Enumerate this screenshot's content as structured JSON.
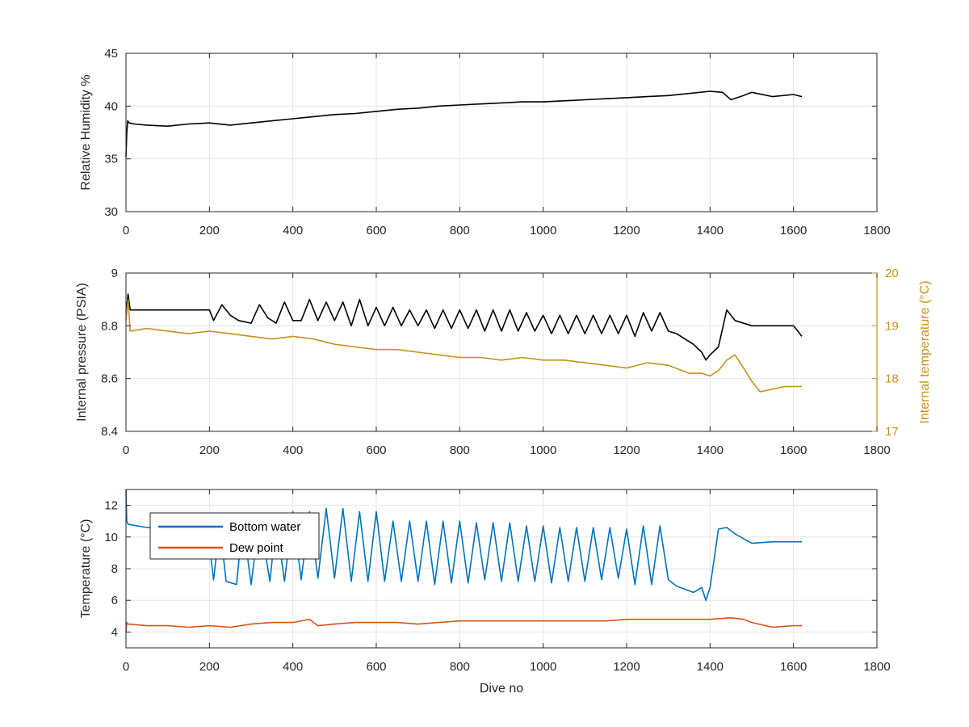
{
  "figure": {
    "background": "#ffffff",
    "axis_color": "#262626",
    "grid_color": "#e6e6e6"
  },
  "chart_data": [
    {
      "type": "line",
      "xlabel": "",
      "ylabel": "Relative Humidity %",
      "xlim": [
        0,
        1800
      ],
      "ylim": [
        30,
        45
      ],
      "xticks": [
        0,
        200,
        400,
        600,
        800,
        1000,
        1200,
        1400,
        1600,
        1800
      ],
      "yticks": [
        30,
        35,
        40,
        45
      ],
      "grid": true,
      "legend": "none",
      "series": [
        {
          "color": "#000000",
          "x": [
            0,
            2,
            4,
            8,
            20,
            50,
            100,
            150,
            200,
            250,
            300,
            350,
            400,
            450,
            500,
            550,
            600,
            650,
            700,
            750,
            800,
            850,
            900,
            950,
            1000,
            1050,
            1100,
            1150,
            1200,
            1250,
            1300,
            1350,
            1400,
            1430,
            1450,
            1480,
            1500,
            1550,
            1600,
            1620
          ],
          "values": [
            35.2,
            37.5,
            38.6,
            38.4,
            38.3,
            38.2,
            38.1,
            38.3,
            38.4,
            38.2,
            38.4,
            38.6,
            38.8,
            39.0,
            39.2,
            39.3,
            39.5,
            39.7,
            39.8,
            40.0,
            40.1,
            40.2,
            40.3,
            40.4,
            40.4,
            40.5,
            40.6,
            40.7,
            40.8,
            40.9,
            41.0,
            41.2,
            41.4,
            41.3,
            40.6,
            41.0,
            41.3,
            40.9,
            41.1,
            40.9
          ]
        }
      ]
    },
    {
      "type": "line",
      "xlabel": "",
      "ylabel": "Internal pressure (PSIA)",
      "y2label": "Internal temperature (°C)",
      "xlim": [
        0,
        1800
      ],
      "ylim": [
        8.4,
        9.0
      ],
      "y2lim": [
        17,
        20
      ],
      "xticks": [
        0,
        200,
        400,
        600,
        800,
        1000,
        1200,
        1400,
        1600,
        1800
      ],
      "yticks": [
        8.4,
        8.6,
        8.8,
        9.0
      ],
      "ytick_labels": [
        "8.4",
        "8.6",
        "8.8",
        "9"
      ],
      "y2ticks": [
        17,
        18,
        19,
        20
      ],
      "grid": true,
      "legend": "none",
      "series": [
        {
          "axis": "left",
          "color": "#000000",
          "x": [
            0,
            5,
            10,
            50,
            100,
            150,
            200,
            210,
            230,
            250,
            270,
            300,
            320,
            340,
            360,
            380,
            400,
            420,
            440,
            460,
            480,
            500,
            520,
            540,
            560,
            580,
            600,
            620,
            640,
            660,
            680,
            700,
            720,
            740,
            760,
            780,
            800,
            820,
            840,
            860,
            880,
            900,
            920,
            940,
            960,
            980,
            1000,
            1020,
            1040,
            1060,
            1080,
            1100,
            1120,
            1140,
            1160,
            1180,
            1200,
            1220,
            1240,
            1260,
            1280,
            1300,
            1320,
            1340,
            1360,
            1380,
            1390,
            1400,
            1420,
            1440,
            1460,
            1500,
            1550,
            1600,
            1620
          ],
          "values": [
            8.85,
            8.92,
            8.86,
            8.86,
            8.86,
            8.86,
            8.86,
            8.82,
            8.88,
            8.84,
            8.82,
            8.81,
            8.88,
            8.83,
            8.81,
            8.89,
            8.82,
            8.82,
            8.9,
            8.82,
            8.89,
            8.82,
            8.89,
            8.8,
            8.9,
            8.8,
            8.87,
            8.8,
            8.87,
            8.8,
            8.86,
            8.8,
            8.86,
            8.79,
            8.86,
            8.79,
            8.86,
            8.79,
            8.86,
            8.78,
            8.86,
            8.78,
            8.86,
            8.78,
            8.85,
            8.78,
            8.84,
            8.77,
            8.84,
            8.77,
            8.84,
            8.77,
            8.84,
            8.77,
            8.84,
            8.77,
            8.84,
            8.76,
            8.85,
            8.78,
            8.85,
            8.78,
            8.77,
            8.75,
            8.73,
            8.7,
            8.67,
            8.69,
            8.72,
            8.86,
            8.82,
            8.8,
            8.8,
            8.8,
            8.76
          ]
        },
        {
          "axis": "right",
          "color": "#C8901A",
          "x": [
            0,
            5,
            10,
            50,
            100,
            150,
            200,
            250,
            300,
            350,
            400,
            450,
            500,
            550,
            600,
            650,
            700,
            750,
            800,
            850,
            900,
            950,
            1000,
            1050,
            1100,
            1150,
            1200,
            1250,
            1300,
            1350,
            1380,
            1400,
            1420,
            1440,
            1460,
            1480,
            1500,
            1520,
            1550,
            1580,
            1600,
            1620
          ],
          "values": [
            19.1,
            19.5,
            18.9,
            18.95,
            18.9,
            18.85,
            18.9,
            18.85,
            18.8,
            18.75,
            18.8,
            18.75,
            18.65,
            18.6,
            18.55,
            18.55,
            18.5,
            18.45,
            18.4,
            18.4,
            18.35,
            18.4,
            18.35,
            18.35,
            18.3,
            18.25,
            18.2,
            18.3,
            18.25,
            18.1,
            18.1,
            18.05,
            18.15,
            18.35,
            18.45,
            18.2,
            17.95,
            17.75,
            17.8,
            17.85,
            17.85,
            17.85
          ]
        }
      ]
    },
    {
      "type": "line",
      "xlabel": "Dive no",
      "ylabel": "Temperature (°C)",
      "xlim": [
        0,
        1800
      ],
      "ylim": [
        3,
        13
      ],
      "xticks": [
        0,
        200,
        400,
        600,
        800,
        1000,
        1200,
        1400,
        1600,
        1800
      ],
      "yticks": [
        4,
        6,
        8,
        10,
        12
      ],
      "grid": true,
      "legend": "top-left",
      "series": [
        {
          "name": "Bottom water",
          "color": "#0072BD",
          "x": [
            0,
            2,
            5,
            50,
            100,
            150,
            195,
            200,
            210,
            225,
            240,
            265,
            280,
            300,
            320,
            345,
            360,
            380,
            400,
            420,
            440,
            460,
            480,
            500,
            520,
            540,
            560,
            580,
            600,
            620,
            640,
            660,
            680,
            700,
            720,
            740,
            760,
            780,
            800,
            820,
            840,
            860,
            880,
            900,
            920,
            940,
            960,
            980,
            1000,
            1020,
            1040,
            1060,
            1080,
            1100,
            1120,
            1140,
            1160,
            1180,
            1200,
            1220,
            1240,
            1260,
            1280,
            1300,
            1320,
            1340,
            1360,
            1380,
            1390,
            1400,
            1420,
            1440,
            1460,
            1500,
            1550,
            1600,
            1620
          ],
          "values": [
            13.0,
            11.0,
            10.8,
            10.6,
            10.6,
            10.5,
            10.4,
            9.5,
            7.3,
            10.8,
            7.2,
            7.0,
            11.0,
            7.0,
            11.2,
            7.2,
            11.0,
            7.2,
            11.6,
            7.3,
            11.6,
            7.4,
            11.8,
            7.4,
            11.8,
            7.2,
            11.6,
            7.2,
            11.6,
            7.2,
            11.0,
            7.2,
            11.0,
            7.2,
            11.0,
            7.0,
            11.0,
            7.1,
            11.0,
            7.1,
            10.9,
            7.3,
            10.9,
            7.2,
            10.9,
            7.2,
            10.7,
            7.2,
            10.7,
            7.1,
            10.6,
            7.2,
            10.6,
            7.2,
            10.6,
            7.3,
            10.6,
            7.4,
            10.5,
            7.0,
            10.7,
            7.0,
            10.7,
            7.3,
            6.9,
            6.7,
            6.5,
            6.8,
            6.0,
            6.8,
            10.5,
            10.6,
            10.2,
            9.6,
            9.7,
            9.7,
            9.7
          ]
        },
        {
          "name": "Dew point",
          "color": "#D95319",
          "x": [
            0,
            2,
            5,
            50,
            100,
            150,
            200,
            250,
            300,
            350,
            400,
            440,
            460,
            500,
            550,
            600,
            650,
            700,
            750,
            800,
            850,
            900,
            950,
            1000,
            1050,
            1100,
            1150,
            1200,
            1250,
            1300,
            1350,
            1400,
            1450,
            1480,
            1500,
            1550,
            1600,
            1620
          ],
          "values": [
            4.0,
            4.6,
            4.5,
            4.4,
            4.4,
            4.3,
            4.4,
            4.3,
            4.5,
            4.6,
            4.6,
            4.8,
            4.4,
            4.5,
            4.6,
            4.6,
            4.6,
            4.5,
            4.6,
            4.7,
            4.7,
            4.7,
            4.7,
            4.7,
            4.7,
            4.7,
            4.7,
            4.8,
            4.8,
            4.8,
            4.8,
            4.8,
            4.9,
            4.8,
            4.6,
            4.3,
            4.4,
            4.4
          ]
        }
      ]
    }
  ]
}
